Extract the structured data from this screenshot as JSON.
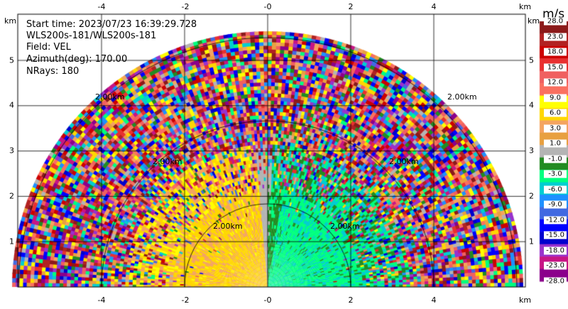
{
  "header": {
    "start_time": "Start time: 2023/07/23 16:39:29.728",
    "instrument": "WLS200s-181/WLS200s-181",
    "field": "Field: VEL",
    "azimuth": "Azimuth(deg): 170.00",
    "nrays": "NRays: 180"
  },
  "axes": {
    "x_unit": "km",
    "y_unit": "km",
    "x_ticks": [
      "-4",
      "-2",
      "-0",
      "2",
      "4"
    ],
    "y_ticks": [
      "5",
      "4",
      "3",
      "2",
      "1"
    ]
  },
  "range_rings": [
    "2.00km",
    "2.00km",
    "2.00km",
    "2.00km",
    "2.00km",
    "2.00km"
  ],
  "colorbar": {
    "title": "m/s",
    "labels": [
      "28.0",
      "23.0",
      "18.0",
      "15.0",
      "12.0",
      "9.0",
      "6.0",
      "3.0",
      "1.0",
      "-1.0",
      "-3.0",
      "-6.0",
      "-9.0",
      "-12.0",
      "-15.0",
      "-18.0",
      "-23.0",
      "-28.0"
    ],
    "colors": [
      "#8b1a1a",
      "#b22222",
      "#cc0000",
      "#e83030",
      "#f06060",
      "#fa7060",
      "#ffff00",
      "#ffd700",
      "#f4a460",
      "#e8a040",
      "#b4b4b4",
      "#228b22",
      "#00ff7f",
      "#00ced1",
      "#1e90ff",
      "#4169e1",
      "#0000ff",
      "#0000cd",
      "#9932cc",
      "#c71585",
      "#8b008b"
    ]
  }
}
